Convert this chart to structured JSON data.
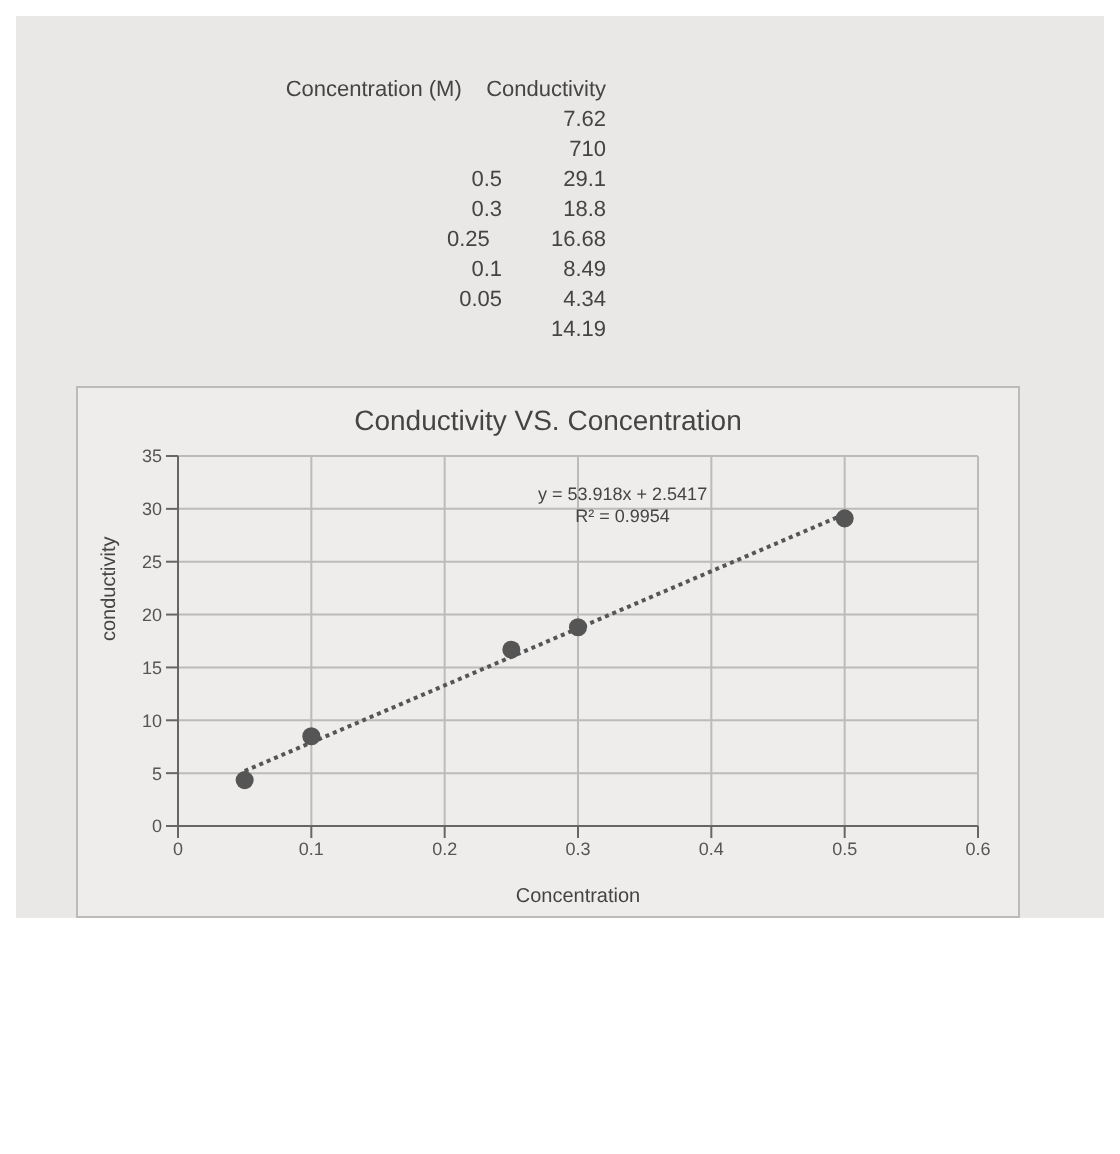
{
  "chart_data": {
    "type": "scatter",
    "title": "Conductivity VS. Concentration",
    "xlabel": "Concentration",
    "ylabel": "conductivity",
    "series": [
      {
        "color": "#555555",
        "x": [
          0.05,
          0.1,
          0.25,
          0.3,
          0.5
        ],
        "values": [
          4.34,
          8.49,
          16.68,
          18.8,
          29.1
        ]
      },
      {
        "type": "line",
        "color": "#555555",
        "line_style": "dotted",
        "marker": "none",
        "x": [
          0.05,
          0.5
        ],
        "values": [
          5.2,
          29.5
        ]
      }
    ],
    "xlim": [
      0,
      0.6
    ],
    "xticks": [
      0,
      0.1,
      0.2,
      0.3,
      0.4,
      0.5,
      0.6
    ],
    "ylim": [
      0,
      35
    ],
    "yticks": [
      0,
      5,
      10,
      15,
      20,
      25,
      30,
      35
    ],
    "grid": true,
    "marker": "circle",
    "legend": false,
    "annotations": [
      "Concentration (M)    Conductivity",
      "7.62",
      "710",
      "0.5          29.1",
      "0.3          18.8",
      "0.25          16.68",
      "0.1          8.49",
      "0.05          4.34",
      "14.19",
      "y = 53.918x + 2.5417",
      "R² = 0.9954"
    ]
  }
}
